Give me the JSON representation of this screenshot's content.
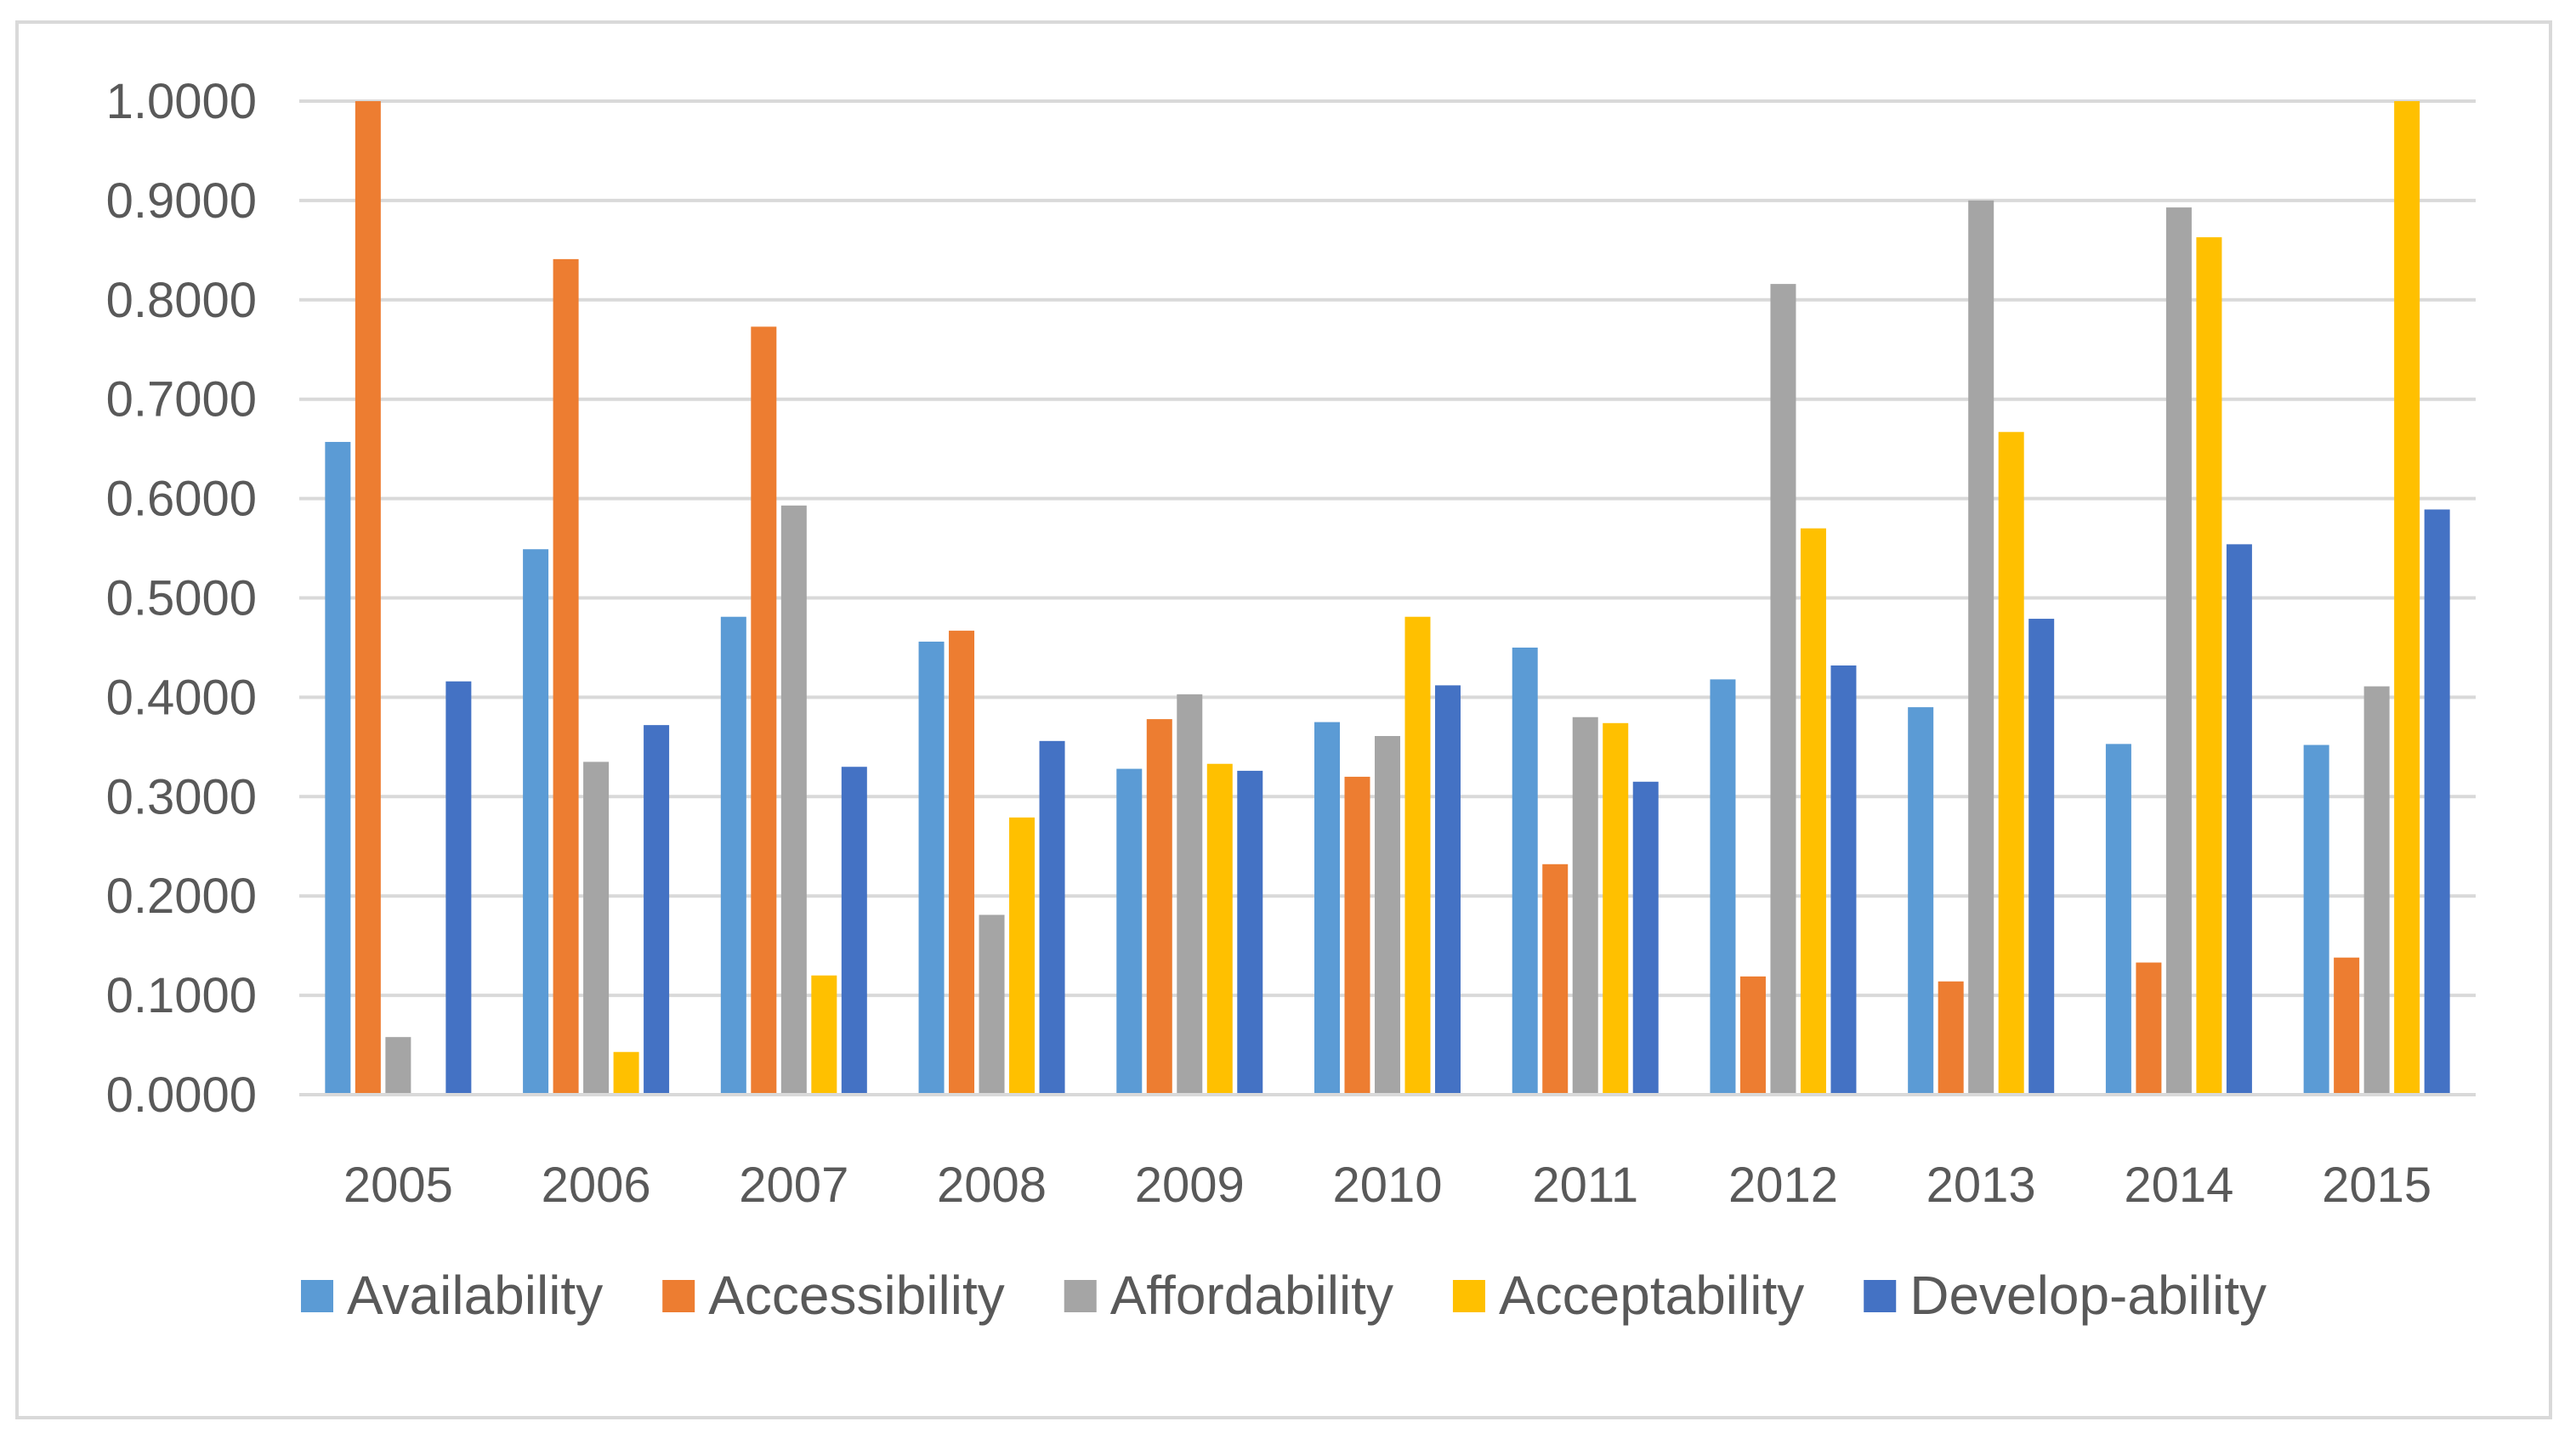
{
  "chart_data": {
    "type": "bar",
    "title": "",
    "xlabel": "",
    "ylabel": "",
    "ylim": [
      0,
      1.0
    ],
    "yticks": [
      "0.0000",
      "0.1000",
      "0.2000",
      "0.3000",
      "0.4000",
      "0.5000",
      "0.6000",
      "0.7000",
      "0.8000",
      "0.9000",
      "1.0000"
    ],
    "yticks_values": [
      0,
      0.1,
      0.2,
      0.3,
      0.4,
      0.5,
      0.6,
      0.7,
      0.8,
      0.9,
      1.0
    ],
    "grid": true,
    "legend_position": "bottom",
    "categories": [
      "2005",
      "2006",
      "2007",
      "2008",
      "2009",
      "2010",
      "2011",
      "2012",
      "2013",
      "2014",
      "2015"
    ],
    "series": [
      {
        "name": "Availability",
        "color": "#5B9BD5",
        "values": [
          0.657,
          0.549,
          0.481,
          0.456,
          0.328,
          0.375,
          0.45,
          0.418,
          0.39,
          0.353,
          0.352
        ]
      },
      {
        "name": "Accessibility",
        "color": "#ED7D31",
        "values": [
          1.0,
          0.841,
          0.773,
          0.467,
          0.378,
          0.32,
          0.232,
          0.119,
          0.114,
          0.133,
          0.138
        ]
      },
      {
        "name": "Affordability",
        "color": "#A5A5A5",
        "values": [
          0.058,
          0.335,
          0.593,
          0.181,
          0.403,
          0.361,
          0.38,
          0.816,
          0.9,
          0.893,
          0.411
        ]
      },
      {
        "name": "Acceptability",
        "color": "#FFC000",
        "values": [
          0.0,
          0.043,
          0.12,
          0.279,
          0.333,
          0.481,
          0.374,
          0.57,
          0.667,
          0.863,
          1.0
        ]
      },
      {
        "name": "Develop-ability",
        "color": "#4472C4",
        "values": [
          0.416,
          0.372,
          0.33,
          0.356,
          0.326,
          0.412,
          0.315,
          0.432,
          0.479,
          0.554,
          0.589
        ]
      }
    ]
  }
}
